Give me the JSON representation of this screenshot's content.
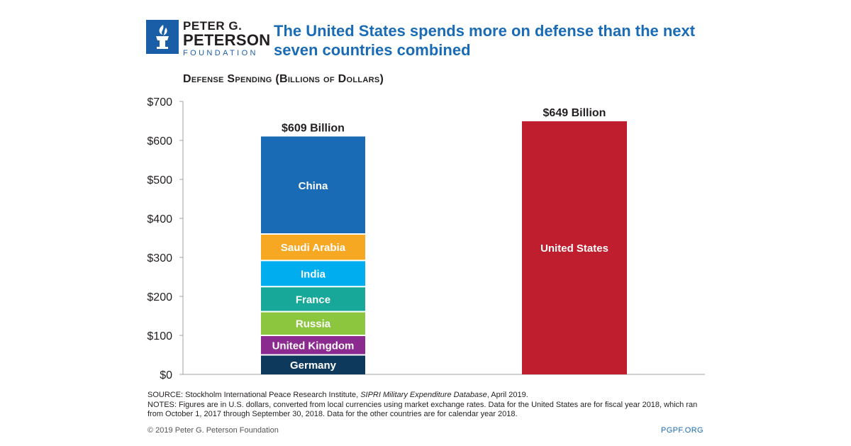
{
  "header": {
    "logo": {
      "line1": "PETER G.",
      "line2": "PETERSON",
      "line3": "FOUNDATION",
      "icon": "torch-icon"
    },
    "title": "The United States spends more on defense than the next seven countries combined"
  },
  "chart_data": {
    "type": "bar",
    "stacked": true,
    "title": "Defense Spending (Billions of Dollars)",
    "xlabel": "",
    "ylabel": "",
    "ylim": [
      0,
      700
    ],
    "yticks": [
      0,
      100,
      200,
      300,
      400,
      500,
      600,
      700
    ],
    "ytick_labels": [
      "$0",
      "$100",
      "$200",
      "$300",
      "$400",
      "$500",
      "$600",
      "$700"
    ],
    "gridlines": false,
    "legend": "none",
    "bars": [
      {
        "total_label": "$609 Billion",
        "segments": [
          {
            "name": "Germany",
            "value": 50,
            "color": "#0d3a5c"
          },
          {
            "name": "United Kingdom",
            "value": 50,
            "color": "#8b2a8f"
          },
          {
            "name": "Russia",
            "value": 61,
            "color": "#8cc63f"
          },
          {
            "name": "France",
            "value": 64,
            "color": "#17a89a"
          },
          {
            "name": "India",
            "value": 67,
            "color": "#00aeef"
          },
          {
            "name": "Saudi Arabia",
            "value": 68,
            "color": "#f7a823"
          },
          {
            "name": "China",
            "value": 250,
            "color": "#1a6bb5"
          }
        ]
      },
      {
        "total_label": "$649 Billion",
        "segments": [
          {
            "name": "United States",
            "value": 649,
            "color": "#bf1e2e"
          }
        ]
      }
    ]
  },
  "notes": {
    "source_prefix": "SOURCE: Stockholm International Peace Research Institute, ",
    "source_title": "SIPRI Military Expenditure Database",
    "source_suffix": ", April 2019.",
    "notes_text": "NOTES: Figures are in U.S. dollars, converted from local currencies using market exchange rates. Data for the United States are for fiscal year 2018, which ran from October 1, 2017 through September 30, 2018. Data for the other countries are for calendar year 2018."
  },
  "footer": {
    "copyright": "© 2019 Peter G. Peterson Foundation",
    "site": "PGPF.ORG"
  }
}
